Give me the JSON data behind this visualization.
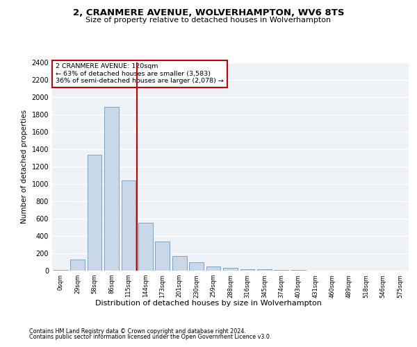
{
  "title1": "2, CRANMERE AVENUE, WOLVERHAMPTON, WV6 8TS",
  "title2": "Size of property relative to detached houses in Wolverhampton",
  "xlabel": "Distribution of detached houses by size in Wolverhampton",
  "ylabel": "Number of detached properties",
  "footer1": "Contains HM Land Registry data © Crown copyright and database right 2024.",
  "footer2": "Contains public sector information licensed under the Open Government Licence v3.0.",
  "annotation_line1": "2 CRANMERE AVENUE: 120sqm",
  "annotation_line2": "← 63% of detached houses are smaller (3,583)",
  "annotation_line3": "36% of semi-detached houses are larger (2,078) →",
  "bar_color": "#c8d8e8",
  "bar_edge_color": "#5a8ab0",
  "vline_color": "#cc0000",
  "annotation_box_color": "#cc0000",
  "background_color": "#eef2f7",
  "categories": [
    "0sqm",
    "29sqm",
    "58sqm",
    "86sqm",
    "115sqm",
    "144sqm",
    "173sqm",
    "201sqm",
    "230sqm",
    "259sqm",
    "288sqm",
    "316sqm",
    "345sqm",
    "374sqm",
    "403sqm",
    "431sqm",
    "460sqm",
    "489sqm",
    "518sqm",
    "546sqm",
    "575sqm"
  ],
  "values": [
    5,
    125,
    1340,
    1890,
    1040,
    550,
    335,
    165,
    100,
    50,
    30,
    20,
    15,
    10,
    5,
    3,
    2,
    1,
    0,
    0,
    2
  ],
  "ylim": [
    0,
    2400
  ],
  "yticks": [
    0,
    200,
    400,
    600,
    800,
    1000,
    1200,
    1400,
    1600,
    1800,
    2000,
    2200,
    2400
  ],
  "vline_x": 4.5,
  "figsize": [
    6.0,
    5.0
  ],
  "dpi": 100
}
